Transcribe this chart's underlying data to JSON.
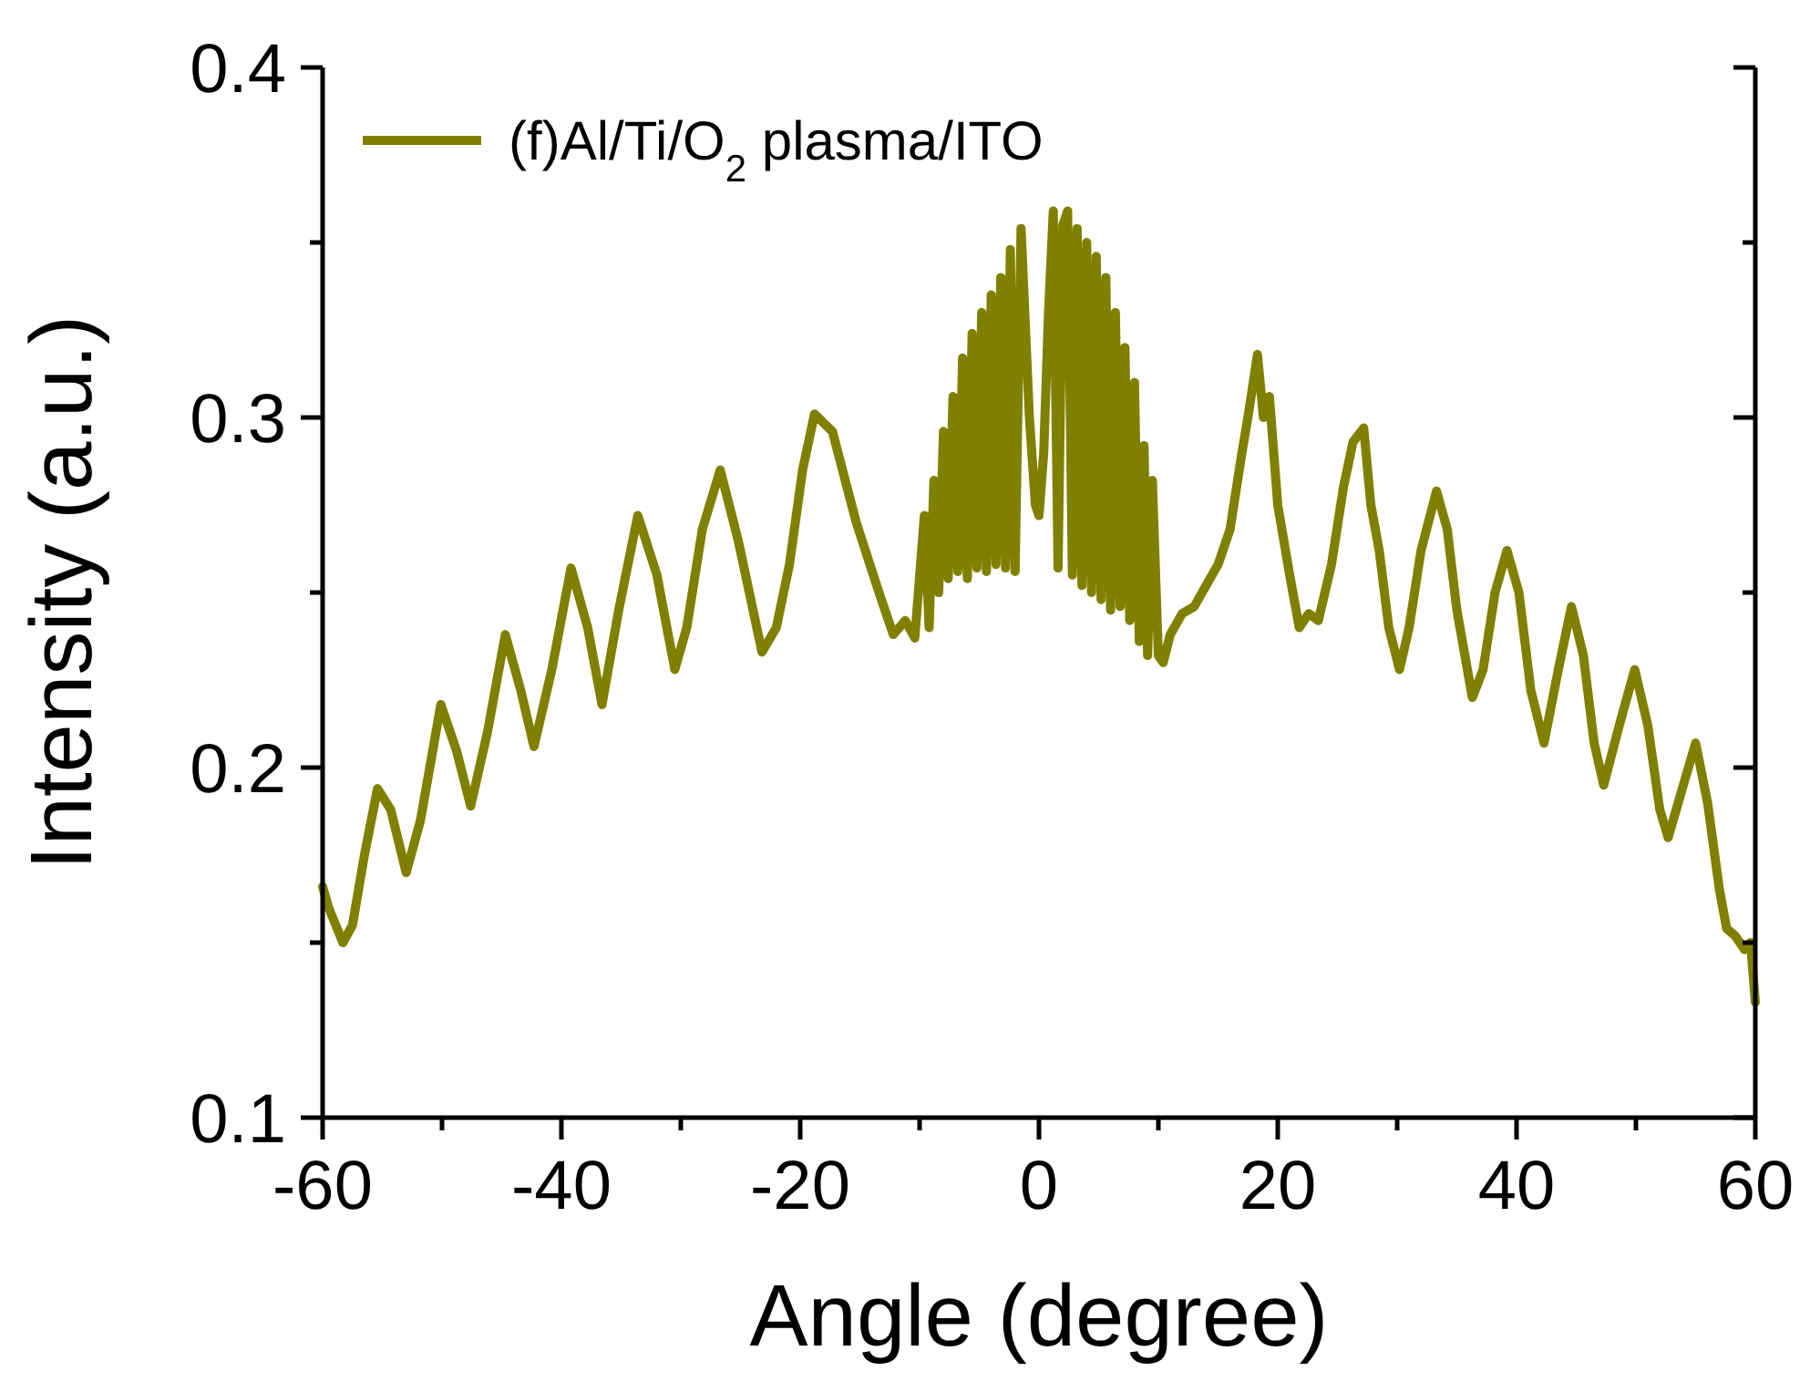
{
  "chart_data": {
    "type": "line",
    "xlabel": "Angle (degree)",
    "ylabel": "Intensity (a.u.)",
    "xlim": [
      -60,
      60
    ],
    "ylim": [
      0.1,
      0.4
    ],
    "xticks": [
      -60,
      {
        "value": -50,
        "label": null
      },
      -40,
      {
        "value": -30,
        "label": null
      },
      -20,
      {
        "value": -10,
        "label": null
      },
      0,
      {
        "value": 10,
        "label": null
      },
      20,
      {
        "value": 30,
        "label": null
      },
      40,
      {
        "value": 50,
        "label": null
      },
      60
    ],
    "yticks": [
      0.1,
      {
        "value": 0.15,
        "label": null
      },
      0.2,
      {
        "value": 0.25,
        "label": null
      },
      0.3,
      {
        "value": 0.35,
        "label": null
      },
      0.4
    ],
    "grid": false,
    "legend": "top left",
    "marker": "none",
    "line_style": "solid",
    "series": [
      {
        "name": "(f)Al/Ti/O$_{2}$ plasma/ITO",
        "color": "#808000",
        "x": [
          -60,
          -59.5,
          -58.3,
          -57.5,
          -56.5,
          -55.4,
          -54.3,
          -53,
          -51.8,
          -50.1,
          -48.8,
          -47.6,
          -46.2,
          -44.7,
          -43.4,
          -42.3,
          -40.8,
          -39.2,
          -37.8,
          -36.6,
          -35.2,
          -33.6,
          -32,
          -30.5,
          -29.5,
          -28.2,
          -26.7,
          -25.2,
          -23.2,
          -22,
          -20.9,
          -19.8,
          -18.8,
          -17.3,
          -15.3,
          -13.4,
          -12.2,
          -11.2,
          -10.4,
          -9.6,
          -9.2,
          -8.8,
          -8.4,
          -8,
          -7.6,
          -7.2,
          -6.8,
          -6.4,
          -6,
          -5.6,
          -5.2,
          -4.8,
          -4.4,
          -4,
          -3.6,
          -3.2,
          -2.8,
          -2.4,
          -2,
          -1.5,
          -0.8,
          -0.3,
          0,
          0.4,
          0.8,
          1.2,
          1.6,
          2,
          2.4,
          2.8,
          3.2,
          3.6,
          4,
          4.4,
          4.8,
          5.2,
          5.6,
          6,
          6.4,
          6.8,
          7.2,
          7.6,
          8,
          8.4,
          8.8,
          9.1,
          9.5,
          10,
          10.4,
          11,
          12,
          13,
          14,
          15,
          16,
          17,
          17.5,
          18.3,
          18.8,
          19.3,
          20,
          21,
          21.8,
          22.6,
          23.4,
          24.5,
          25.5,
          26.3,
          27.2,
          27.8,
          28.5,
          29.3,
          30.2,
          31,
          32,
          33.3,
          34.2,
          35,
          36.3,
          37.2,
          38.2,
          39.2,
          40.2,
          41.2,
          42.3,
          43.5,
          44.6,
          45.6,
          46.5,
          47.3,
          48.6,
          49.9,
          51,
          52,
          52.7,
          53.8,
          55,
          56,
          57,
          57.6,
          58.3,
          59.1,
          59.6,
          60
        ],
        "values": [
          0.166,
          0.16,
          0.15,
          0.155,
          0.175,
          0.194,
          0.188,
          0.17,
          0.185,
          0.218,
          0.205,
          0.189,
          0.21,
          0.238,
          0.222,
          0.206,
          0.228,
          0.257,
          0.24,
          0.218,
          0.245,
          0.272,
          0.255,
          0.228,
          0.24,
          0.268,
          0.285,
          0.265,
          0.233,
          0.24,
          0.258,
          0.285,
          0.301,
          0.296,
          0.27,
          0.25,
          0.238,
          0.242,
          0.237,
          0.272,
          0.24,
          0.282,
          0.25,
          0.296,
          0.254,
          0.306,
          0.256,
          0.317,
          0.254,
          0.324,
          0.257,
          0.33,
          0.256,
          0.335,
          0.258,
          0.34,
          0.257,
          0.348,
          0.256,
          0.354,
          0.3,
          0.275,
          0.272,
          0.29,
          0.33,
          0.359,
          0.257,
          0.355,
          0.359,
          0.255,
          0.354,
          0.252,
          0.35,
          0.25,
          0.346,
          0.248,
          0.34,
          0.245,
          0.33,
          0.246,
          0.32,
          0.242,
          0.31,
          0.236,
          0.292,
          0.232,
          0.282,
          0.232,
          0.23,
          0.238,
          0.244,
          0.246,
          0.252,
          0.258,
          0.268,
          0.29,
          0.3,
          0.318,
          0.3,
          0.306,
          0.275,
          0.255,
          0.24,
          0.244,
          0.242,
          0.258,
          0.28,
          0.293,
          0.297,
          0.275,
          0.262,
          0.24,
          0.228,
          0.24,
          0.262,
          0.279,
          0.268,
          0.245,
          0.22,
          0.228,
          0.25,
          0.262,
          0.25,
          0.222,
          0.207,
          0.228,
          0.246,
          0.232,
          0.207,
          0.195,
          0.212,
          0.228,
          0.212,
          0.188,
          0.18,
          0.193,
          0.207,
          0.19,
          0.165,
          0.154,
          0.152,
          0.148,
          0.15,
          0.133
        ]
      }
    ]
  }
}
